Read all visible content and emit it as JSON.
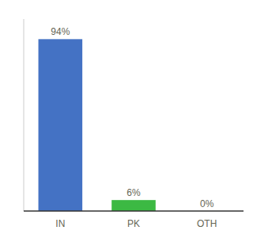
{
  "chart_data": {
    "type": "bar",
    "categories": [
      "IN",
      "PK",
      "OTH"
    ],
    "values": [
      94,
      6,
      0
    ],
    "value_labels": [
      "94%",
      "6%",
      "0%"
    ],
    "colors": [
      "#4472C4",
      "#3CB943",
      "#4472C4"
    ],
    "ylim": [
      0,
      105
    ],
    "data_labels": true,
    "tick_labels": "x",
    "grid": false
  }
}
